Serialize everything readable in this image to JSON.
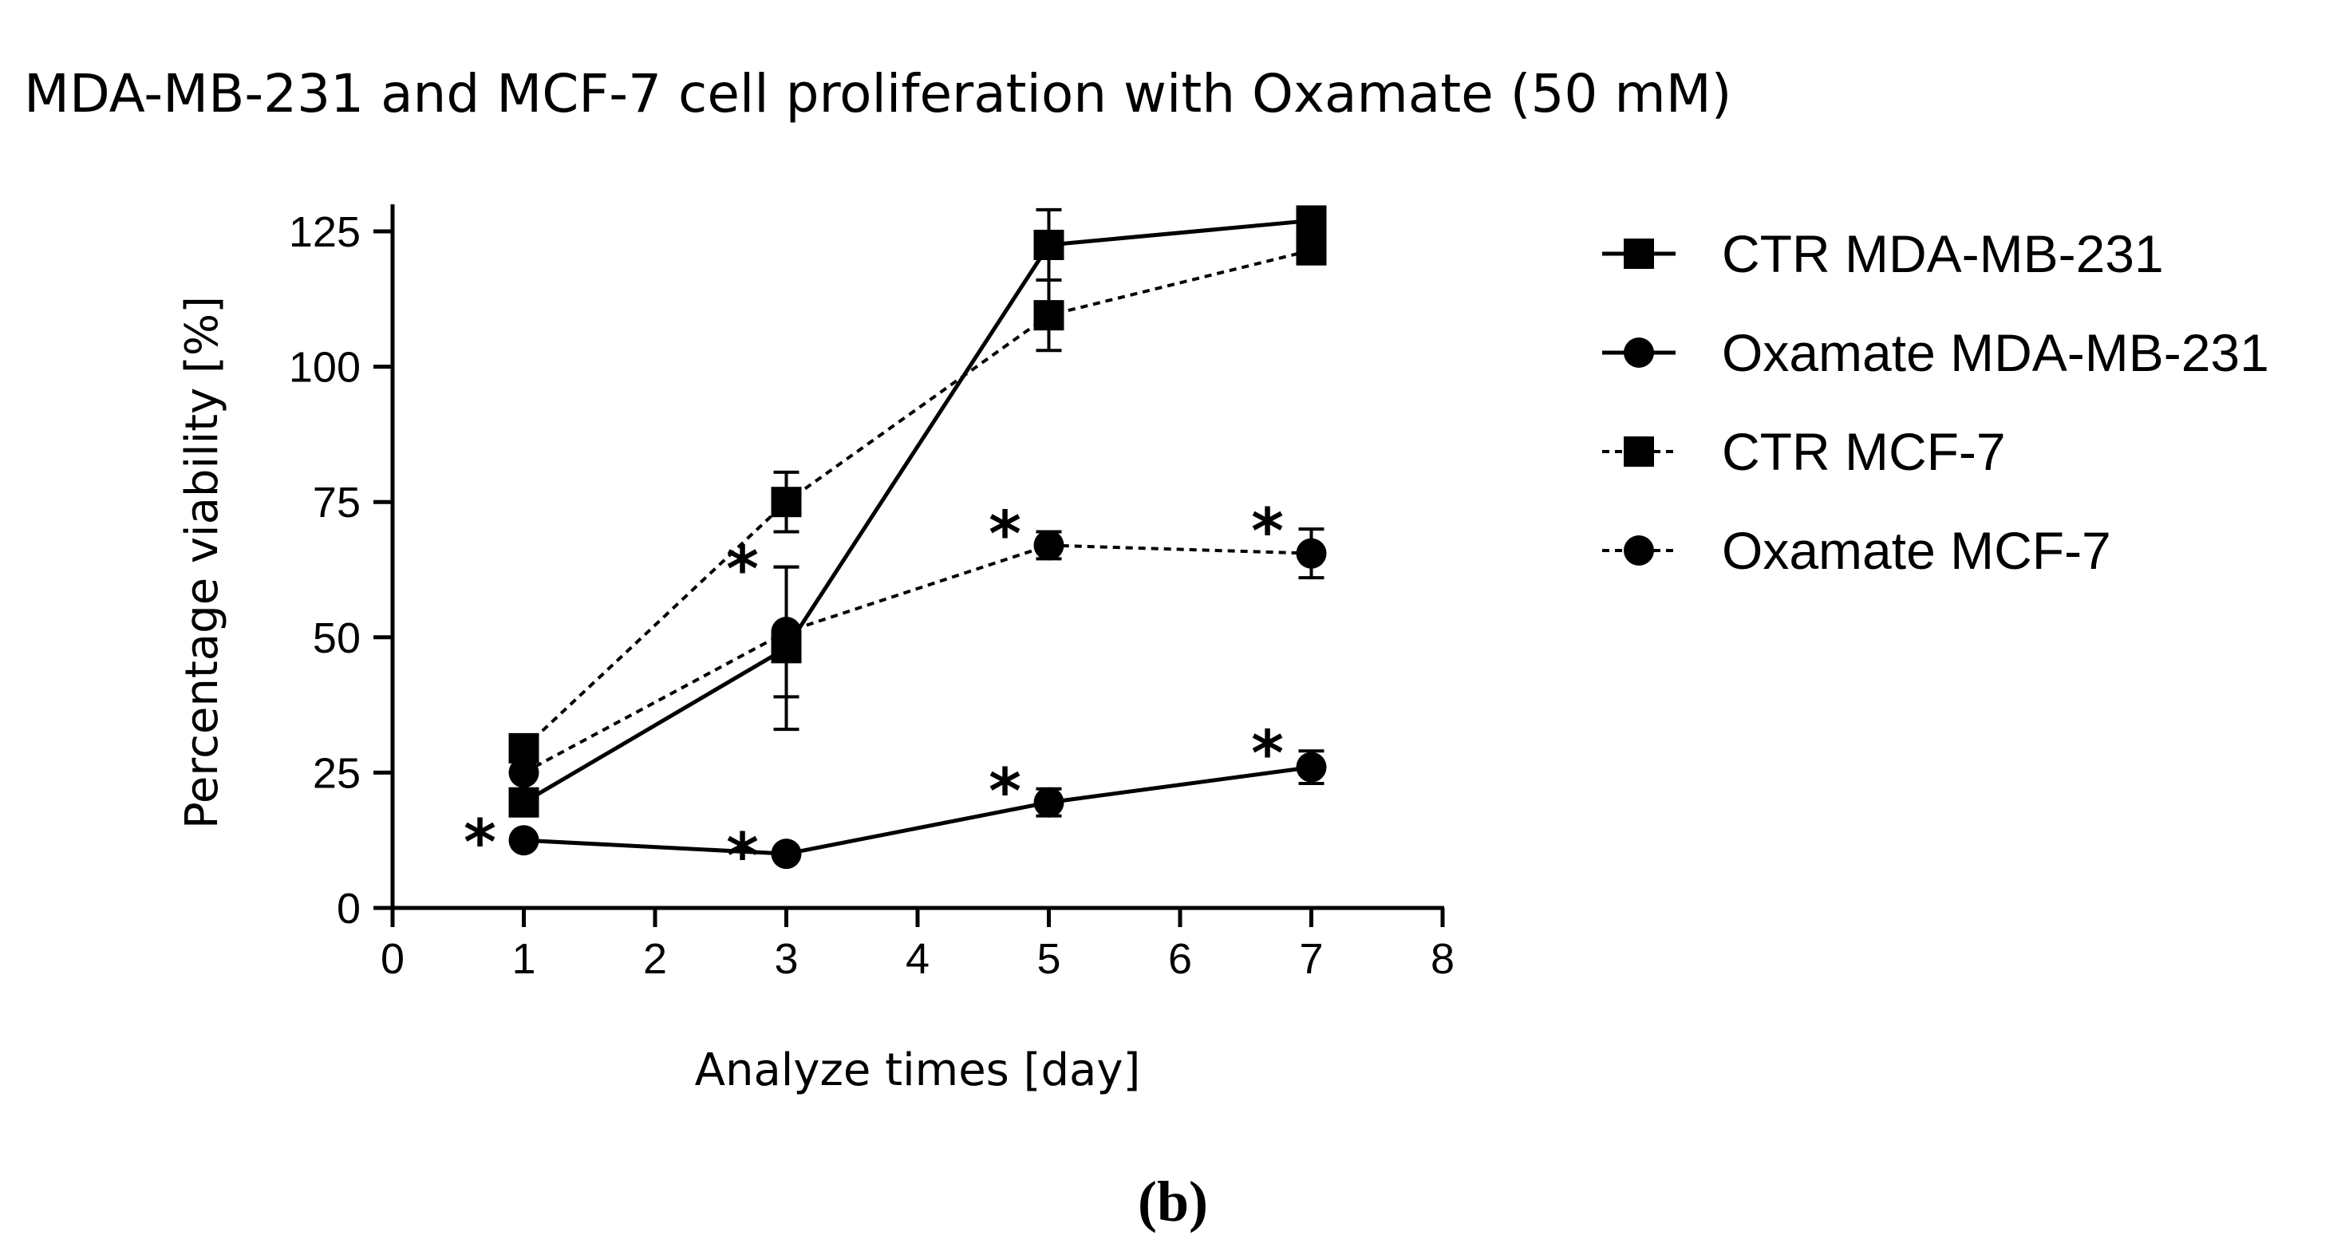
{
  "chart_data": {
    "type": "line",
    "title": "MDA-MB-231 and MCF-7 cell proliferation with Oxamate (50 mM)",
    "xlabel": "Analyze times [day]",
    "ylabel": "Percentage viability [%]",
    "xlim": [
      0,
      8
    ],
    "ylim": [
      0,
      130
    ],
    "xticks": [
      "0",
      "1",
      "2",
      "3",
      "4",
      "5",
      "6",
      "7",
      "8"
    ],
    "yticks": [
      "0",
      "25",
      "50",
      "75",
      "100",
      "125"
    ],
    "legend_position": "right",
    "panel_label": "(b)",
    "panel_letter": "b",
    "significance_marker": "*",
    "series": [
      {
        "name": "CTR MDA-MB-231",
        "marker": "square",
        "line": "solid",
        "x": [
          1,
          3,
          5,
          7
        ],
        "y": [
          19.5,
          48,
          122.5,
          127
        ],
        "err": [
          0,
          15,
          6.5,
          2.5
        ],
        "significant": [
          false,
          false,
          false,
          false
        ]
      },
      {
        "name": "Oxamate MDA-MB-231",
        "marker": "circle",
        "line": "solid",
        "x": [
          1,
          3,
          5,
          7
        ],
        "y": [
          12.5,
          10,
          19.5,
          26
        ],
        "err": [
          0,
          0,
          2.5,
          3
        ],
        "significant": [
          true,
          true,
          true,
          true
        ]
      },
      {
        "name": "CTR MCF-7",
        "marker": "square",
        "line": "dashed",
        "x": [
          1,
          3,
          5,
          7
        ],
        "y": [
          29.5,
          75,
          109.5,
          121.5
        ],
        "err": [
          0,
          5.5,
          6.5,
          0
        ],
        "significant": [
          false,
          false,
          false,
          false
        ]
      },
      {
        "name": "Oxamate MCF-7",
        "marker": "circle",
        "line": "dashed",
        "x": [
          1,
          3,
          5,
          7
        ],
        "y": [
          25,
          51,
          67,
          65.5
        ],
        "err": [
          0,
          12,
          2.5,
          4.5
        ],
        "significant": [
          false,
          true,
          true,
          true
        ]
      }
    ]
  }
}
